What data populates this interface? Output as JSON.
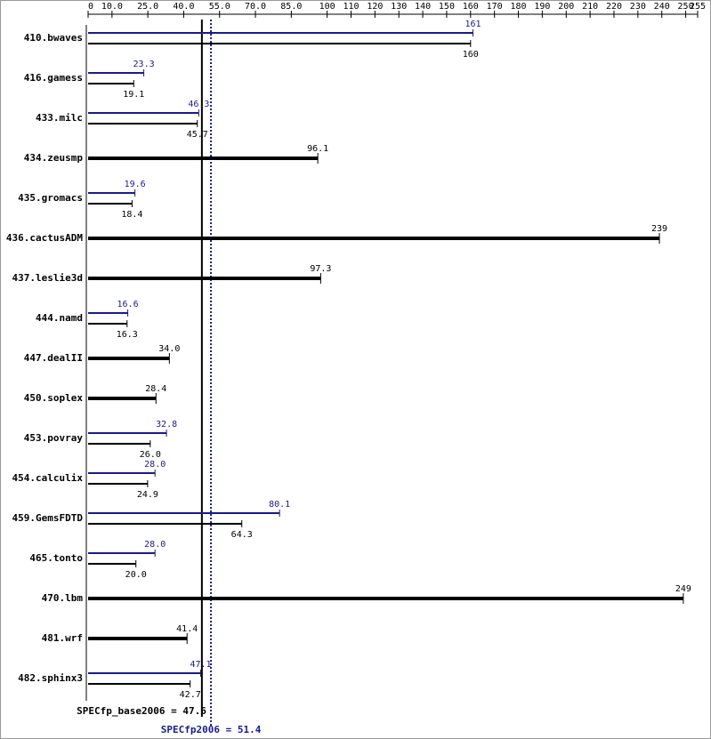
{
  "chart_data": {
    "type": "bar",
    "categories": [
      "410.bwaves",
      "416.gamess",
      "433.milc",
      "434.zeusmp",
      "435.gromacs",
      "436.cactusADM",
      "437.leslie3d",
      "444.namd",
      "447.dealII",
      "450.soplex",
      "453.povray",
      "454.calculix",
      "459.GemsFDTD",
      "465.tonto",
      "470.lbm",
      "481.wrf",
      "482.sphinx3"
    ],
    "series": [
      {
        "color": "#1a1a8c",
        "values": [
          161,
          23.3,
          46.3,
          null,
          19.6,
          null,
          null,
          16.6,
          null,
          null,
          32.8,
          28.0,
          80.1,
          28.0,
          null,
          null,
          47.1
        ],
        "value_labels": [
          "161",
          "23.3",
          "46.3",
          null,
          "19.6",
          null,
          null,
          "16.6",
          null,
          null,
          "32.8",
          "28.0",
          "80.1",
          "28.0",
          null,
          null,
          "47.1"
        ]
      },
      {
        "color": "#000000",
        "values": [
          160,
          19.1,
          45.7,
          96.1,
          18.4,
          239,
          97.3,
          16.3,
          34.0,
          28.4,
          26.0,
          24.9,
          64.3,
          20.0,
          249,
          41.4,
          42.7
        ],
        "value_labels": [
          "160",
          "19.1",
          "45.7",
          "96.1",
          "18.4",
          "239",
          "97.3",
          "16.3",
          "34.0",
          "28.4",
          "26.0",
          "24.9",
          "64.3",
          "20.0",
          "249",
          "41.4",
          "42.7"
        ]
      }
    ],
    "xlim": [
      0,
      255
    ],
    "xticks": [
      0,
      {
        "value": 10,
        "label": "10.0"
      },
      {
        "value": 25,
        "label": "25.0"
      },
      {
        "value": 40,
        "label": "40.0"
      },
      {
        "value": 55,
        "label": "55.0"
      },
      {
        "value": 70,
        "label": "70.0"
      },
      {
        "value": 85,
        "label": "85.0"
      },
      100,
      110,
      120,
      130,
      140,
      150,
      160,
      170,
      180,
      190,
      200,
      210,
      220,
      230,
      240,
      250,
      255
    ],
    "base_metric": {
      "label": "SPECfp_base2006 = 47.6",
      "value": 47.6,
      "color": "#000000"
    },
    "peak_metric": {
      "label": "SPECfp2006 = 51.4",
      "value": 51.4,
      "color": "#1a1a8c"
    }
  }
}
